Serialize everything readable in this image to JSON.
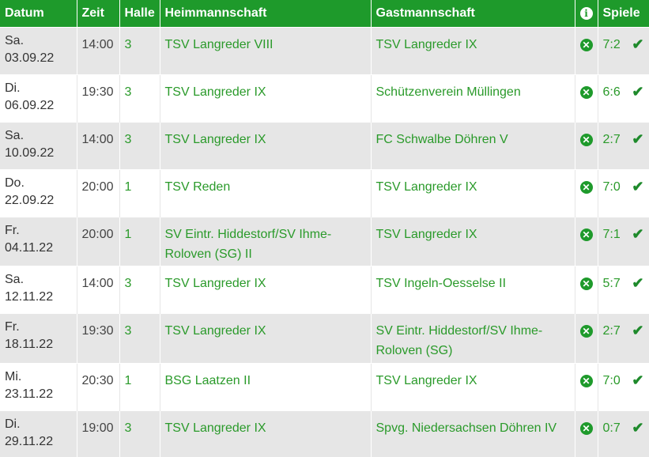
{
  "headers": {
    "date": "Datum",
    "time": "Zeit",
    "hall": "Halle",
    "home": "Heimmannschaft",
    "guest": "Gastmannschaft",
    "info": "info-icon",
    "games": "Spiele"
  },
  "rows": [
    {
      "day": "Sa.",
      "date": "03.09.22",
      "time": "14:00",
      "hall": "3",
      "home": "TSV Langreder VIII",
      "guest": "TSV Langreder IX",
      "score": "7:2"
    },
    {
      "day": "Di.",
      "date": "06.09.22",
      "time": "19:30",
      "hall": "3",
      "home": "TSV Langreder IX",
      "guest": "Schützenverein Müllingen",
      "score": "6:6"
    },
    {
      "day": "Sa.",
      "date": "10.09.22",
      "time": "14:00",
      "hall": "3",
      "home": "TSV Langreder IX",
      "guest": "FC Schwalbe Döhren V",
      "score": "2:7"
    },
    {
      "day": "Do.",
      "date": "22.09.22",
      "time": "20:00",
      "hall": "1",
      "home": "TSV Reden",
      "guest": "TSV Langreder IX",
      "score": "7:0"
    },
    {
      "day": "Fr.",
      "date": "04.11.22",
      "time": "20:00",
      "hall": "1",
      "home": "SV Eintr. Hiddestorf/SV Ihme-Roloven (SG) II",
      "guest": "TSV Langreder IX",
      "score": "7:1"
    },
    {
      "day": "Sa.",
      "date": "12.11.22",
      "time": "14:00",
      "hall": "3",
      "home": "TSV Langreder IX",
      "guest": "TSV Ingeln-Oesselse II",
      "score": "5:7"
    },
    {
      "day": "Fr.",
      "date": "18.11.22",
      "time": "19:30",
      "hall": "3",
      "home": "TSV Langreder IX",
      "guest": "SV Eintr. Hiddestorf/SV Ihme-Roloven (SG)",
      "score": "2:7"
    },
    {
      "day": "Mi.",
      "date": "23.11.22",
      "time": "20:30",
      "hall": "1",
      "home": "BSG Laatzen II",
      "guest": "TSV Langreder IX",
      "score": "7:0"
    },
    {
      "day": "Di.",
      "date": "29.11.22",
      "time": "19:00",
      "hall": "3",
      "home": "TSV Langreder IX",
      "guest": "Spvg. Niedersachsen Döhren IV",
      "score": "0:7"
    }
  ]
}
